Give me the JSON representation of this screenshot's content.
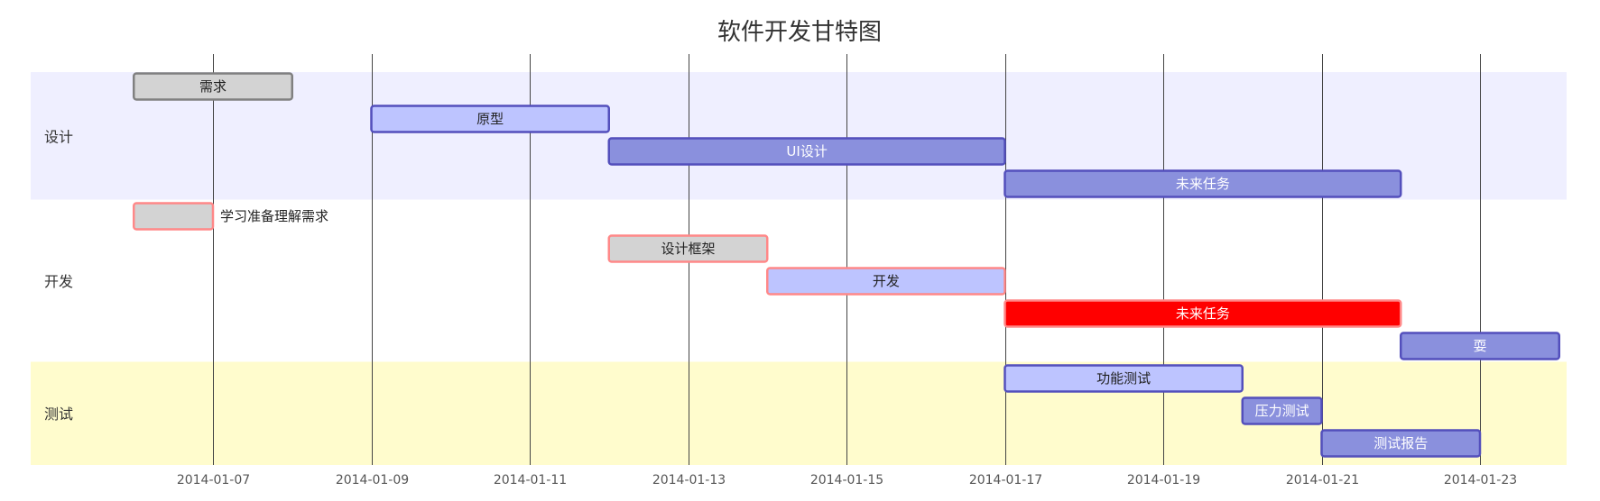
{
  "title": "软件开发甘特图",
  "axis_ticks": [
    "2014-01-07",
    "2014-01-09",
    "2014-01-11",
    "2014-01-13",
    "2014-01-15",
    "2014-01-17",
    "2014-01-19",
    "2014-01-21",
    "2014-01-23"
  ],
  "sections": [
    {
      "name": "设计",
      "color": "#efefff"
    },
    {
      "name": "开发",
      "color": "#ffffff"
    },
    {
      "name": "测试",
      "color": "#fffccd"
    }
  ],
  "colors": {
    "done_fill": "#d3d3d3",
    "done_stroke": "#808080",
    "active_fill": "#bdc4ff",
    "active_stroke": "#534fbc",
    "future_fill": "#8a90dd",
    "future_stroke": "#534fbc",
    "critical_stroke": "#ff8888",
    "critical_future_fill": "#ff0000",
    "grid": "#444444"
  },
  "chart_data": {
    "type": "gantt",
    "title": "软件开发甘特图",
    "x_axis": "date",
    "xlim": [
      "2014-01-04",
      "2014-01-24"
    ],
    "tasks": [
      {
        "name": "需求",
        "section": "设计",
        "start": "2014-01-06",
        "end": "2014-01-08",
        "status": "done"
      },
      {
        "name": "原型",
        "section": "设计",
        "start": "2014-01-09",
        "end": "2014-01-12",
        "status": "active"
      },
      {
        "name": "UI设计",
        "section": "设计",
        "start": "2014-01-12",
        "end": "2014-01-17",
        "status": "future"
      },
      {
        "name": "未来任务",
        "section": "设计",
        "start": "2014-01-17",
        "end": "2014-01-22",
        "status": "future"
      },
      {
        "name": "学习准备理解需求",
        "section": "开发",
        "start": "2014-01-06",
        "end": "2014-01-07",
        "status": "done",
        "critical": true
      },
      {
        "name": "设计框架",
        "section": "开发",
        "start": "2014-01-12",
        "end": "2014-01-14",
        "status": "done",
        "critical": true
      },
      {
        "name": "开发",
        "section": "开发",
        "start": "2014-01-14",
        "end": "2014-01-17",
        "status": "active",
        "critical": true
      },
      {
        "name": "未来任务",
        "section": "开发",
        "start": "2014-01-17",
        "end": "2014-01-22",
        "status": "future",
        "critical": true
      },
      {
        "name": "耍",
        "section": "开发",
        "start": "2014-01-22",
        "end": "2014-01-24",
        "status": "future"
      },
      {
        "name": "功能测试",
        "section": "测试",
        "start": "2014-01-17",
        "end": "2014-01-20",
        "status": "active"
      },
      {
        "name": "压力测试",
        "section": "测试",
        "start": "2014-01-20",
        "end": "2014-01-21",
        "status": "future"
      },
      {
        "name": "测试报告",
        "section": "测试",
        "start": "2014-01-21",
        "end": "2014-01-23",
        "status": "future"
      }
    ]
  }
}
